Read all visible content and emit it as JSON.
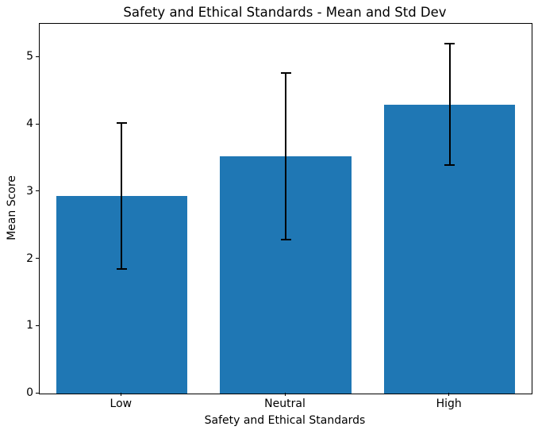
{
  "chart_data": {
    "type": "bar",
    "title": "Safety and Ethical Standards - Mean and Std Dev",
    "xlabel": "Safety and Ethical Standards",
    "ylabel": "Mean Score",
    "categories": [
      "Low",
      "Neutral",
      "High"
    ],
    "values": [
      2.94,
      3.53,
      4.3
    ],
    "std_dev": [
      1.09,
      1.24,
      0.9
    ],
    "ylim": [
      0,
      5.5
    ],
    "yticks": [
      0,
      1,
      2,
      3,
      4,
      5
    ],
    "bar_width_fraction": 0.8,
    "bar_color": "#1f77b4",
    "error_bar_color": "#000000",
    "axes_color": "#000000",
    "background_color": "#ffffff",
    "grid": false,
    "legend": "none"
  }
}
